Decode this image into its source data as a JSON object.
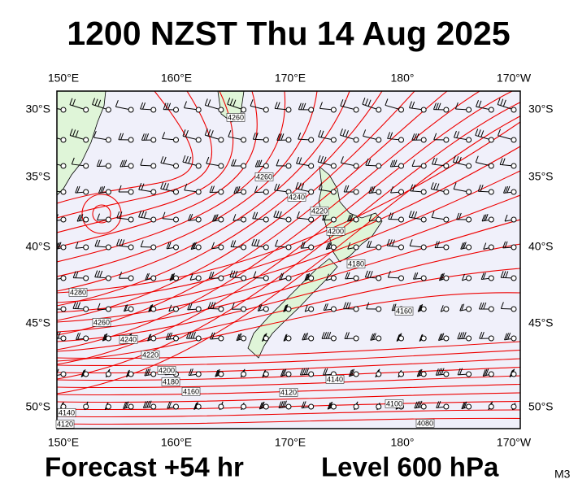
{
  "header": {
    "title": "1200 NZST Thu 14 Aug 2025"
  },
  "map": {
    "longitude_labels_top": [
      "150°E",
      "160°E",
      "170°E",
      "180°",
      "170°W"
    ],
    "longitude_labels_bottom": [
      "150°E",
      "160°E",
      "170°E",
      "180°",
      "170°W"
    ],
    "latitude_labels_left": [
      "30°S",
      "35°S",
      "40°S",
      "45°S",
      "50°S"
    ],
    "latitude_labels_right": [
      "30°S",
      "35°S",
      "40°S",
      "45°S",
      "50°S"
    ],
    "contour_labels": [
      "4260",
      "4260",
      "4240",
      "4220",
      "4200",
      "4180",
      "4280",
      "4260",
      "4240",
      "4220",
      "4200",
      "4180",
      "4160",
      "4140",
      "4120",
      "4100",
      "4080",
      "4160",
      "4140",
      "4120"
    ]
  },
  "footer": {
    "forecast": "Forecast +54 hr",
    "level": "Level 600 hPa",
    "model": "M3"
  }
}
